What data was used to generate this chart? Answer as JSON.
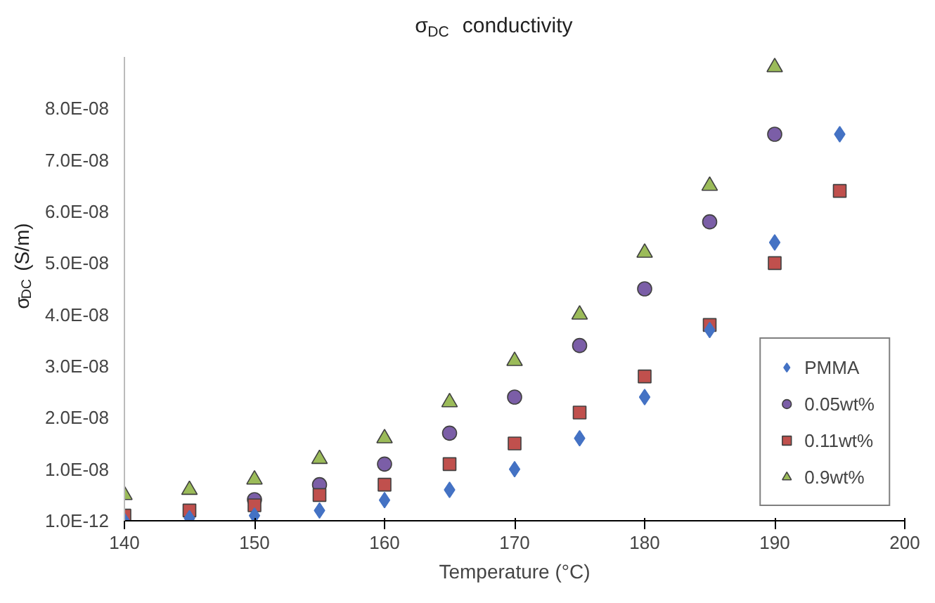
{
  "chart_data": {
    "type": "scatter",
    "title": "σ$_{DC}$ conductivity",
    "xlabel": "Temperature (°C)",
    "ylabel": "σ$_{DC}$ (S/m)",
    "xlim": [
      140,
      200
    ],
    "xticks": [
      140,
      150,
      160,
      170,
      180,
      190,
      200
    ],
    "ylim": [
      0,
      9e-08
    ],
    "yticks": [
      {
        "value": 1e-12,
        "label": "1.0E-12"
      },
      {
        "value": 1e-08,
        "label": "1.0E-08"
      },
      {
        "value": 2e-08,
        "label": "2.0E-08"
      },
      {
        "value": 3e-08,
        "label": "3.0E-08"
      },
      {
        "value": 4e-08,
        "label": "4.0E-08"
      },
      {
        "value": 5e-08,
        "label": "5.0E-08"
      },
      {
        "value": 6e-08,
        "label": "6.0E-08"
      },
      {
        "value": 7e-08,
        "label": "7.0E-08"
      },
      {
        "value": 8e-08,
        "label": "8.0E-08"
      }
    ],
    "grid": false,
    "legend": "bottom right",
    "series": [
      {
        "name": "PMMA",
        "color": "#4472c4",
        "marker": "diamond",
        "x": [
          140,
          145,
          150,
          155,
          160,
          165,
          170,
          175,
          180,
          185,
          190,
          195
        ],
        "values": [
          0,
          5e-10,
          1e-09,
          2e-09,
          4e-09,
          6e-09,
          1e-08,
          1.6e-08,
          2.4e-08,
          3.7e-08,
          5.4e-08,
          7.5e-08
        ]
      },
      {
        "name": "0.05wt%",
        "color": "#7b5ea7",
        "marker": "circle",
        "x": [
          150,
          155,
          160,
          165,
          170,
          175,
          180,
          185,
          190
        ],
        "values": [
          4.1e-09,
          7e-09,
          1.1e-08,
          1.7e-08,
          2.4e-08,
          3.4e-08,
          4.5e-08,
          5.8e-08,
          7.5e-08
        ]
      },
      {
        "name": "0.11wt%",
        "color": "#c0504d",
        "marker": "square",
        "x": [
          140,
          145,
          150,
          155,
          160,
          165,
          170,
          175,
          180,
          185,
          190,
          195
        ],
        "values": [
          1e-09,
          2e-09,
          3e-09,
          5e-09,
          7e-09,
          1.1e-08,
          1.5e-08,
          2.1e-08,
          2.8e-08,
          3.8e-08,
          5e-08,
          6.4e-08
        ]
      },
      {
        "name": "0.9wt%",
        "color": "#9bbb59",
        "marker": "triangle",
        "x": [
          140,
          145,
          150,
          155,
          160,
          165,
          170,
          175,
          180,
          185,
          190
        ],
        "values": [
          5e-09,
          6e-09,
          8e-09,
          1.2e-08,
          1.6e-08,
          2.3e-08,
          3.1e-08,
          4e-08,
          5.2e-08,
          6.5e-08,
          8.8e-08
        ]
      }
    ]
  }
}
